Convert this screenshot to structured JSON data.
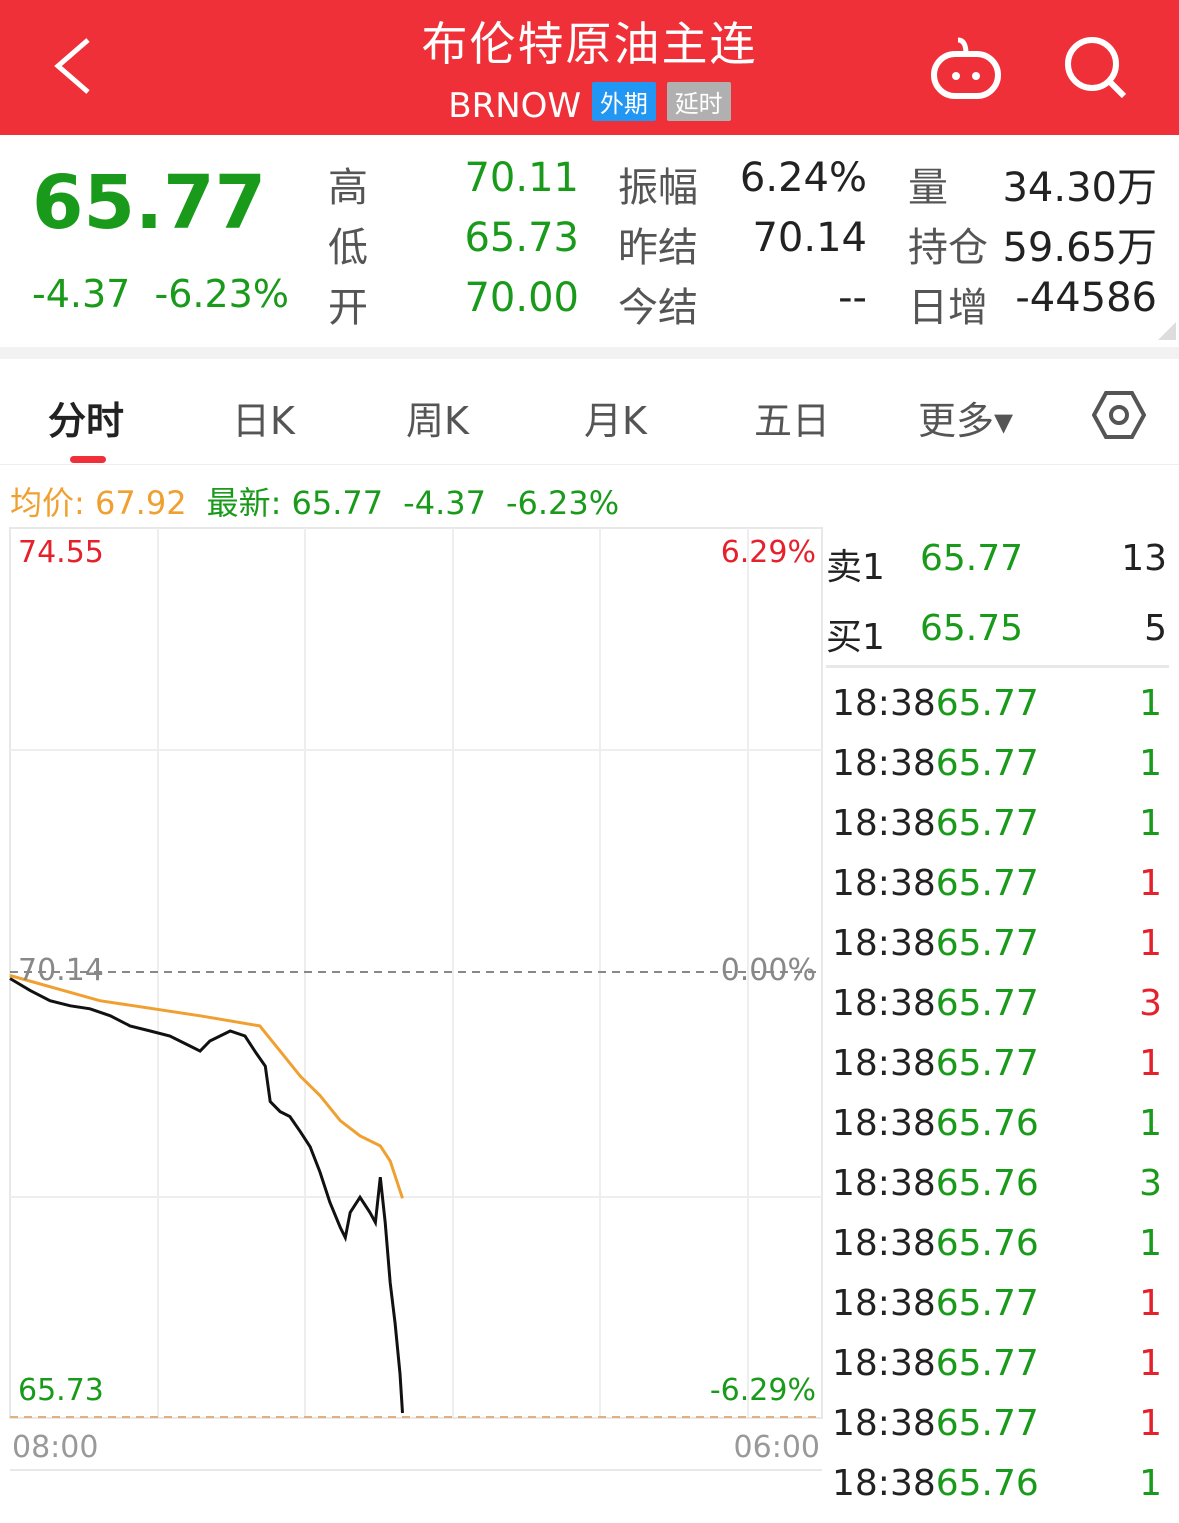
{
  "header": {
    "title": "布伦特原油主连",
    "code": "BRNOW",
    "badge1": "外期",
    "badge2": "延时",
    "badge1_color": "#2196f3",
    "badge2_color": "#b0b0b0",
    "bg": "#ef3038",
    "icons": [
      "back-icon",
      "robot-icon",
      "search-icon"
    ]
  },
  "quote": {
    "price": "65.77",
    "change": "-4.37",
    "change_pct": "-6.23%",
    "fields": [
      {
        "label": "高",
        "value": "70.11",
        "color": "green"
      },
      {
        "label": "振幅",
        "value": "6.24%",
        "color": "black"
      },
      {
        "label": "量",
        "value": "34.30万",
        "color": "black"
      },
      {
        "label": "低",
        "value": "65.73",
        "color": "green"
      },
      {
        "label": "昨结",
        "value": "70.14",
        "color": "black"
      },
      {
        "label": "持仓",
        "value": "59.65万",
        "color": "black"
      },
      {
        "label": "开",
        "value": "70.00",
        "color": "green"
      },
      {
        "label": "今结",
        "value": "--",
        "color": "black"
      },
      {
        "label": "日增",
        "value": "-44586",
        "color": "black"
      }
    ]
  },
  "tabs": [
    {
      "label": "分时",
      "active": true
    },
    {
      "label": "日K"
    },
    {
      "label": "周K"
    },
    {
      "label": "月K"
    },
    {
      "label": "五日"
    },
    {
      "label": "更多▾"
    }
  ],
  "info": {
    "avg_label": "均价: 67.92",
    "latest_label": "最新: 65.77",
    "change": "-4.37",
    "change_pct": "-6.23%"
  },
  "chart_data": {
    "type": "line",
    "x_range": [
      "08:00",
      "06:00"
    ],
    "ylim": [
      65.73,
      74.55
    ],
    "prev_settle": 70.14,
    "y_labels": {
      "top": "74.55",
      "mid": "70.14",
      "bottom": "65.73"
    },
    "pct_labels": {
      "top": "6.29%",
      "mid": "0.00%",
      "bottom": "-6.29%"
    },
    "x_labels": [
      "08:00",
      "06:00"
    ],
    "series": [
      {
        "color": "#111111",
        "points": [
          [
            "08:00",
            70.08
          ],
          [
            "08:33",
            69.96
          ],
          [
            "09:05",
            69.86
          ],
          [
            "09:38",
            69.81
          ],
          [
            "10:10",
            69.78
          ],
          [
            "10:43",
            69.71
          ],
          [
            "11:15",
            69.61
          ],
          [
            "11:48",
            69.56
          ],
          [
            "12:20",
            69.51
          ],
          [
            "12:53",
            69.41
          ],
          [
            "13:09",
            69.36
          ],
          [
            "13:25",
            69.46
          ],
          [
            "13:58",
            69.56
          ],
          [
            "14:22",
            69.51
          ],
          [
            "14:38",
            69.36
          ],
          [
            "14:55",
            69.21
          ],
          [
            "15:03",
            68.86
          ],
          [
            "15:19",
            68.76
          ],
          [
            "15:35",
            68.71
          ],
          [
            "15:52",
            68.56
          ],
          [
            "16:08",
            68.41
          ],
          [
            "16:24",
            68.16
          ],
          [
            "16:40",
            67.86
          ],
          [
            "16:57",
            67.61
          ],
          [
            "17:05",
            67.51
          ],
          [
            "17:13",
            67.76
          ],
          [
            "17:29",
            67.91
          ],
          [
            "17:45",
            67.76
          ],
          [
            "17:54",
            67.66
          ],
          [
            "18:02",
            68.11
          ],
          [
            "18:10",
            67.66
          ],
          [
            "18:18",
            67.06
          ],
          [
            "18:26",
            66.66
          ],
          [
            "18:34",
            66.16
          ],
          [
            "18:38",
            65.77
          ]
        ]
      },
      {
        "color": "#f0a030",
        "points": [
          [
            "08:00",
            70.11
          ],
          [
            "10:26",
            69.86
          ],
          [
            "13:09",
            69.71
          ],
          [
            "14:46",
            69.61
          ],
          [
            "15:19",
            69.36
          ],
          [
            "15:52",
            69.11
          ],
          [
            "16:24",
            68.92
          ],
          [
            "16:57",
            68.67
          ],
          [
            "17:29",
            68.52
          ],
          [
            "18:02",
            68.42
          ],
          [
            "18:18",
            68.27
          ],
          [
            "18:38",
            67.9
          ]
        ]
      }
    ]
  },
  "orderbook": [
    {
      "label": "卖1",
      "price": "65.77",
      "vol": "13"
    },
    {
      "label": "买1",
      "price": "65.75",
      "vol": "5"
    }
  ],
  "trades": [
    {
      "t": "18:38",
      "p": "65.77",
      "v": "1",
      "c": "g"
    },
    {
      "t": "18:38",
      "p": "65.77",
      "v": "1",
      "c": "g"
    },
    {
      "t": "18:38",
      "p": "65.77",
      "v": "1",
      "c": "g"
    },
    {
      "t": "18:38",
      "p": "65.77",
      "v": "1",
      "c": "r"
    },
    {
      "t": "18:38",
      "p": "65.77",
      "v": "1",
      "c": "r"
    },
    {
      "t": "18:38",
      "p": "65.77",
      "v": "3",
      "c": "r"
    },
    {
      "t": "18:38",
      "p": "65.77",
      "v": "1",
      "c": "r"
    },
    {
      "t": "18:38",
      "p": "65.76",
      "v": "1",
      "c": "g"
    },
    {
      "t": "18:38",
      "p": "65.76",
      "v": "3",
      "c": "g"
    },
    {
      "t": "18:38",
      "p": "65.76",
      "v": "1",
      "c": "g"
    },
    {
      "t": "18:38",
      "p": "65.77",
      "v": "1",
      "c": "r"
    },
    {
      "t": "18:38",
      "p": "65.77",
      "v": "1",
      "c": "r"
    },
    {
      "t": "18:38",
      "p": "65.77",
      "v": "1",
      "c": "r"
    },
    {
      "t": "18:38",
      "p": "65.76",
      "v": "1",
      "c": "g"
    }
  ]
}
